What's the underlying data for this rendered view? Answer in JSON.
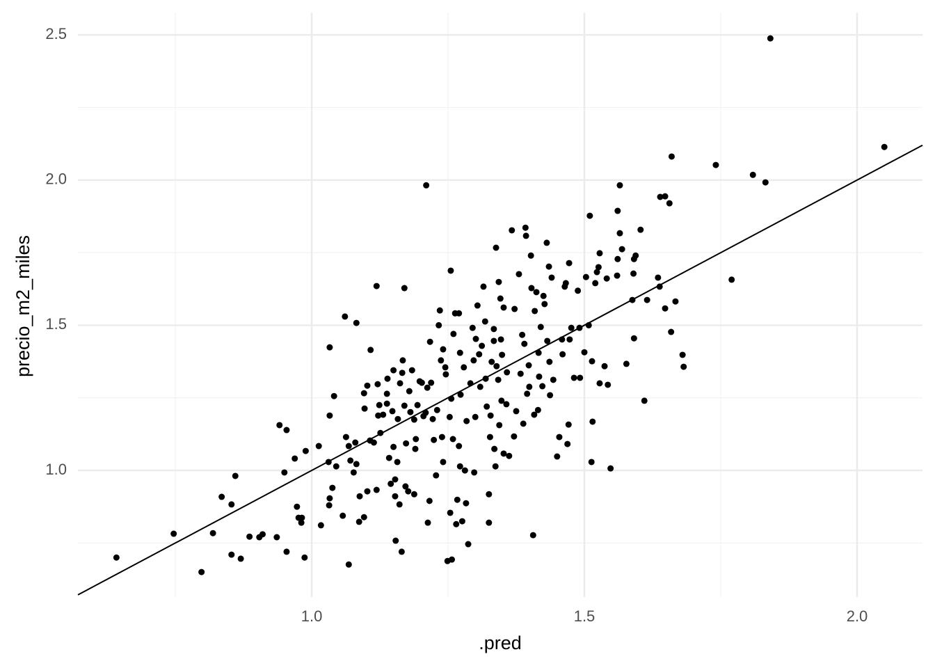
{
  "chart_data": {
    "type": "scatter",
    "x_label": ".pred",
    "y_label": "precio_m2_miles",
    "xlim": [
      0.5714,
      2.1199
    ],
    "ylim": [
      0.564,
      2.577
    ],
    "xticks": [
      {
        "value": 1,
        "label": "1.0"
      },
      {
        "value": 1.5,
        "label": "1.5"
      },
      {
        "value": 2,
        "label": "2.0"
      }
    ],
    "yticks": [
      {
        "value": 1,
        "label": "1.0"
      },
      {
        "value": 1.5,
        "label": "1.5"
      },
      {
        "value": 2,
        "label": "2.0"
      },
      {
        "value": 2.5,
        "label": "2.5"
      }
    ],
    "grid": true,
    "minor_grid": true,
    "color": "#000000",
    "reference_line": {
      "slope": 1,
      "intercept": 0
    },
    "x": [
      0.642,
      0.747,
      0.798,
      0.819,
      0.835,
      0.853,
      0.853,
      0.86,
      0.87,
      0.886,
      0.904,
      0.91,
      0.936,
      0.941,
      0.954,
      0.95,
      0.954,
      0.969,
      0.973,
      0.976,
      0.982,
      0.981,
      0.989,
      0.987,
      1.013,
      1.017,
      1.031,
      1.033,
      1.033,
      1.033,
      1.032,
      1.038,
      1.041,
      1.045,
      1.057,
      1.061,
      1.063,
      1.068,
      1.068,
      1.071,
      1.077,
      1.08,
      1.082,
      1.082,
      1.087,
      1.088,
      1.096,
      1.096,
      1.097,
      1.102,
      1.102,
      1.107,
      1.108,
      1.114,
      1.119,
      1.119,
      1.121,
      1.122,
      1.124,
      1.126,
      1.131,
      1.138,
      1.138,
      1.139,
      1.142,
      1.145,
      1.148,
      1.15,
      1.15,
      1.153,
      1.153,
      1.154,
      1.157,
      1.158,
      1.161,
      1.162,
      1.165,
      1.166,
      1.167,
      1.17,
      1.17,
      1.172,
      1.173,
      1.177,
      1.179,
      1.181,
      1.184,
      1.188,
      1.188,
      1.19,
      1.191,
      1.194,
      1.198,
      1.202,
      1.205,
      1.209,
      1.21,
      1.212,
      1.213,
      1.216,
      1.217,
      1.219,
      1.222,
      1.224,
      1.228,
      1.23,
      1.233,
      1.235,
      1.237,
      1.239,
      1.241,
      1.241,
      1.245,
      1.246,
      1.249,
      1.253,
      1.254,
      1.255,
      1.256,
      1.257,
      1.259,
      1.26,
      1.263,
      1.265,
      1.267,
      1.27,
      1.27,
      1.272,
      1.272,
      1.273,
      1.276,
      1.279,
      1.281,
      1.283,
      1.284,
      1.287,
      1.291,
      1.295,
      1.297,
      1.298,
      1.3,
      1.301,
      1.304,
      1.307,
      1.309,
      1.312,
      1.315,
      1.318,
      1.319,
      1.321,
      1.325,
      1.325,
      1.327,
      1.328,
      1.33,
      1.334,
      1.334,
      1.335,
      1.337,
      1.338,
      1.339,
      1.342,
      1.343,
      1.344,
      1.346,
      1.347,
      1.348,
      1.349,
      1.352,
      1.352,
      1.357,
      1.358,
      1.362,
      1.367,
      1.371,
      1.372,
      1.375,
      1.38,
      1.383,
      1.386,
      1.388,
      1.39,
      1.392,
      1.393,
      1.395,
      1.398,
      1.399,
      1.402,
      1.403,
      1.406,
      1.408,
      1.409,
      1.412,
      1.415,
      1.416,
      1.417,
      1.42,
      1.423,
      1.425,
      1.427,
      1.431,
      1.432,
      1.435,
      1.436,
      1.437,
      1.44,
      1.443,
      1.45,
      1.454,
      1.459,
      1.46,
      1.464,
      1.466,
      1.469,
      1.471,
      1.472,
      1.473,
      1.476,
      1.481,
      1.488,
      1.491,
      1.492,
      1.5,
      1.503,
      1.508,
      1.51,
      1.513,
      1.514,
      1.515,
      1.52,
      1.523,
      1.526,
      1.528,
      1.528,
      1.537,
      1.541,
      1.543,
      1.548,
      1.56,
      1.561,
      1.561,
      1.565,
      1.565,
      1.569,
      1.577,
      1.588,
      1.59,
      1.591,
      1.591,
      1.594,
      1.603,
      1.61,
      1.615,
      1.635,
      1.638,
      1.639,
      1.648,
      1.648,
      1.656,
      1.659,
      1.66,
      1.667,
      1.68,
      1.682,
      1.741,
      1.77,
      1.809,
      1.832,
      1.841,
      2.05
    ],
    "y": [
      0.7,
      0.782,
      0.65,
      0.784,
      0.909,
      0.71,
      0.883,
      0.981,
      0.696,
      0.772,
      0.77,
      0.78,
      0.77,
      1.156,
      1.139,
      0.993,
      0.72,
      1.041,
      0.875,
      0.837,
      0.837,
      0.82,
      1.067,
      0.7,
      1.084,
      0.811,
      1.029,
      1.424,
      1.189,
      0.904,
      0.88,
      0.94,
      1.256,
      1.014,
      0.844,
      1.53,
      1.115,
      0.676,
      1.084,
      1.034,
      0.993,
      1.096,
      1.022,
      1.508,
      0.823,
      0.911,
      0.839,
      1.266,
      1.213,
      1.292,
      0.928,
      1.103,
      1.415,
      1.096,
      1.635,
      0.933,
      1.297,
      1.189,
      1.225,
      1.129,
      1.192,
      1.264,
      1.23,
      1.316,
      1.043,
      0.954,
      1.204,
      1.081,
      1.345,
      0.969,
      0.911,
      0.758,
      1.029,
      1.177,
      0.883,
      1.3,
      0.72,
      1.336,
      1.379,
      1.628,
      1.223,
      0.945,
      1.093,
      0.928,
      1.273,
      1.201,
      1.345,
      1.175,
      0.918,
      1.074,
      1.108,
      1.225,
      1.307,
      1.302,
      1.187,
      1.199,
      1.982,
      1.285,
      0.82,
      0.895,
      1.443,
      1.302,
      1.177,
      1.105,
      0.983,
      1.208,
      1.5,
      1.551,
      1.379,
      1.115,
      1.029,
      1.417,
      1.355,
      1.331,
      0.688,
      1.184,
      0.854,
      1.688,
      1.247,
      0.693,
      1.108,
      1.47,
      1.541,
      0.815,
      0.899,
      1.084,
      1.541,
      1.405,
      1.014,
      1.261,
      0.825,
      1.355,
      1.0,
      0.887,
      1.17,
      0.746,
      1.3,
      1.491,
      1.379,
      0.993,
      1.184,
      1.453,
      1.568,
      1.4,
      1.288,
      1.429,
      1.633,
      1.513,
      1.316,
      1.22,
      0.82,
      0.918,
      1.115,
      1.189,
      1.374,
      1.487,
      1.446,
      1.074,
      1.014,
      1.767,
      1.359,
      1.312,
      1.649,
      1.156,
      1.592,
      1.451,
      1.24,
      1.398,
      1.058,
      1.561,
      1.228,
      1.338,
      1.05,
      1.827,
      1.117,
      1.556,
      1.204,
      1.676,
      1.333,
      1.467,
      1.161,
      1.436,
      1.836,
      1.808,
      1.264,
      1.362,
      1.288,
      1.74,
      1.628,
      0.777,
      1.192,
      1.549,
      1.614,
      1.208,
      1.405,
      1.323,
      1.494,
      1.29,
      1.601,
      1.573,
      1.784,
      1.446,
      1.702,
      1.374,
      1.259,
      1.664,
      1.312,
      1.048,
      1.115,
      1.451,
      1.4,
      1.633,
      1.645,
      1.091,
      1.158,
      1.714,
      1.451,
      1.491,
      1.319,
      1.619,
      1.491,
      1.319,
      1.407,
      1.666,
      1.5,
      1.877,
      1.029,
      1.376,
      1.168,
      1.645,
      1.683,
      1.7,
      1.748,
      1.3,
      1.359,
      1.661,
      1.295,
      1.007,
      1.671,
      1.728,
      1.894,
      1.982,
      1.817,
      1.762,
      1.367,
      1.587,
      1.678,
      1.728,
      1.455,
      1.74,
      1.829,
      1.24,
      1.587,
      1.664,
      1.633,
      1.942,
      1.558,
      1.944,
      1.92,
      1.477,
      2.081,
      1.582,
      1.398,
      1.357,
      2.052,
      1.657,
      2.018,
      1.992,
      2.488,
      2.114
    ]
  }
}
